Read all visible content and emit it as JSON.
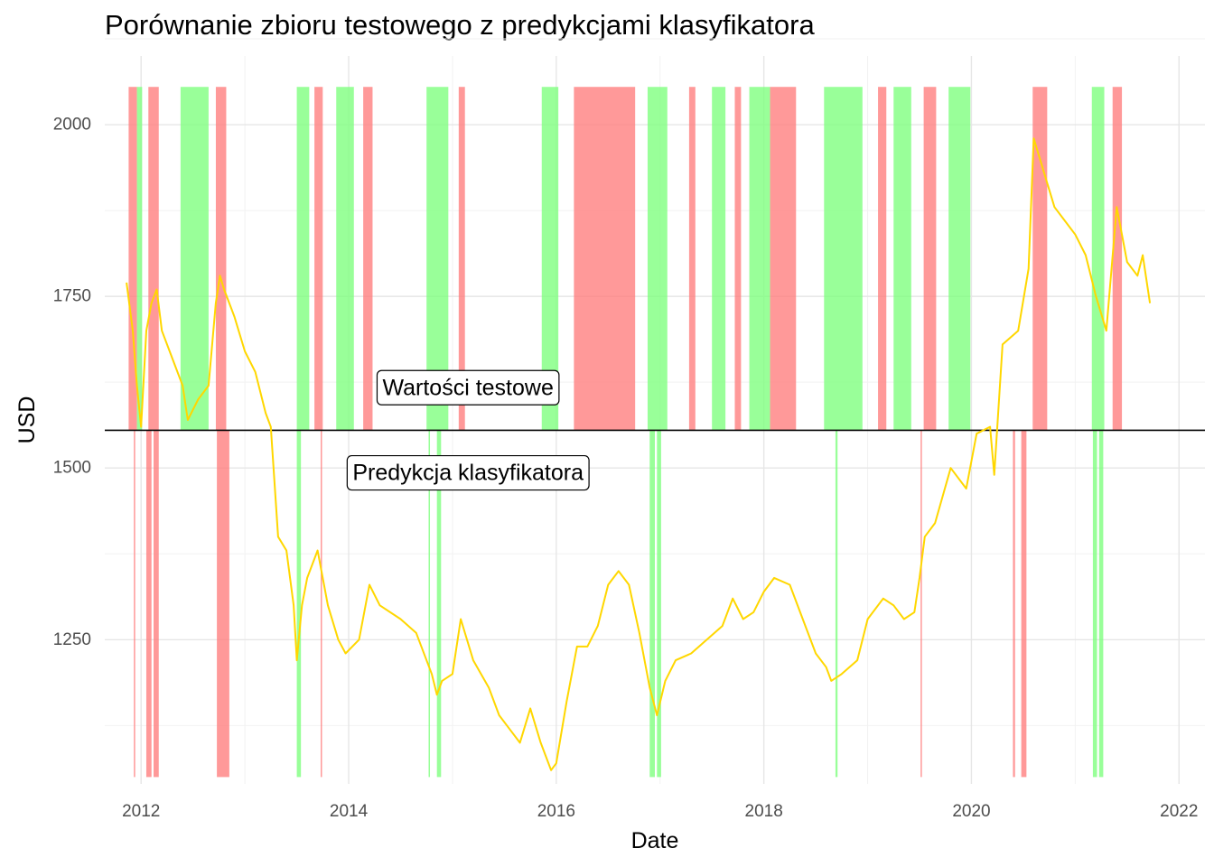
{
  "chart_data": {
    "type": "line",
    "title": "Porównanie zbioru testowego z predykcjami klasyfikatora",
    "xlabel": "Date",
    "ylabel": "USD",
    "xlim": [
      2011.65,
      2022.25
    ],
    "ylim": [
      1040,
      2100
    ],
    "x_ticks": [
      2012,
      2014,
      2016,
      2018,
      2020,
      2022
    ],
    "y_ticks": [
      1250,
      1500,
      1750,
      2000
    ],
    "grid": true,
    "reference_line": 1555,
    "band_top": 2055,
    "band_bottom": 1050,
    "colors": {
      "line": "#ffd700",
      "up": "#80ff80",
      "down": "#ff7f7f",
      "ref_line": "#000000"
    },
    "annotations": [
      {
        "text": "Wartości testowe",
        "x": 2015.15,
        "y": 1617
      },
      {
        "text": "Predykcja klasyfikatora",
        "x": 2015.15,
        "y": 1493
      }
    ],
    "test_regions": [
      {
        "start": 2011.88,
        "end": 2011.96,
        "class": "down"
      },
      {
        "start": 2011.96,
        "end": 2012.01,
        "class": "up"
      },
      {
        "start": 2012.07,
        "end": 2012.17,
        "class": "down"
      },
      {
        "start": 2012.38,
        "end": 2012.65,
        "class": "up"
      },
      {
        "start": 2012.72,
        "end": 2012.82,
        "class": "down"
      },
      {
        "start": 2013.5,
        "end": 2013.62,
        "class": "up"
      },
      {
        "start": 2013.67,
        "end": 2013.75,
        "class": "down"
      },
      {
        "start": 2013.88,
        "end": 2014.05,
        "class": "up"
      },
      {
        "start": 2014.14,
        "end": 2014.23,
        "class": "down"
      },
      {
        "start": 2014.75,
        "end": 2014.96,
        "class": "up"
      },
      {
        "start": 2015.06,
        "end": 2015.12,
        "class": "down"
      },
      {
        "start": 2015.86,
        "end": 2016.02,
        "class": "up"
      },
      {
        "start": 2016.17,
        "end": 2016.76,
        "class": "down"
      },
      {
        "start": 2016.88,
        "end": 2017.07,
        "class": "up"
      },
      {
        "start": 2017.28,
        "end": 2017.34,
        "class": "down"
      },
      {
        "start": 2017.5,
        "end": 2017.63,
        "class": "up"
      },
      {
        "start": 2017.72,
        "end": 2017.78,
        "class": "down"
      },
      {
        "start": 2017.86,
        "end": 2018.06,
        "class": "up"
      },
      {
        "start": 2018.06,
        "end": 2018.31,
        "class": "down"
      },
      {
        "start": 2018.58,
        "end": 2018.95,
        "class": "up"
      },
      {
        "start": 2019.1,
        "end": 2019.18,
        "class": "down"
      },
      {
        "start": 2019.25,
        "end": 2019.42,
        "class": "up"
      },
      {
        "start": 2019.54,
        "end": 2019.66,
        "class": "down"
      },
      {
        "start": 2019.78,
        "end": 2019.99,
        "class": "up"
      },
      {
        "start": 2020.59,
        "end": 2020.73,
        "class": "down"
      },
      {
        "start": 2021.16,
        "end": 2021.28,
        "class": "up"
      },
      {
        "start": 2021.36,
        "end": 2021.45,
        "class": "down"
      }
    ],
    "prediction_regions": [
      {
        "start": 2011.93,
        "end": 2011.94,
        "class": "down"
      },
      {
        "start": 2012.05,
        "end": 2012.1,
        "class": "down"
      },
      {
        "start": 2012.12,
        "end": 2012.17,
        "class": "down"
      },
      {
        "start": 2012.73,
        "end": 2012.85,
        "class": "down"
      },
      {
        "start": 2013.5,
        "end": 2013.54,
        "class": "up"
      },
      {
        "start": 2013.73,
        "end": 2013.74,
        "class": "down"
      },
      {
        "start": 2014.77,
        "end": 2014.78,
        "class": "up"
      },
      {
        "start": 2014.85,
        "end": 2014.89,
        "class": "up"
      },
      {
        "start": 2016.9,
        "end": 2016.95,
        "class": "up"
      },
      {
        "start": 2016.97,
        "end": 2017.01,
        "class": "up"
      },
      {
        "start": 2018.69,
        "end": 2018.71,
        "class": "up"
      },
      {
        "start": 2019.51,
        "end": 2019.52,
        "class": "down"
      },
      {
        "start": 2020.4,
        "end": 2020.42,
        "class": "down"
      },
      {
        "start": 2020.48,
        "end": 2020.53,
        "class": "down"
      },
      {
        "start": 2021.17,
        "end": 2021.21,
        "class": "up"
      },
      {
        "start": 2021.23,
        "end": 2021.27,
        "class": "up"
      }
    ],
    "series": [
      {
        "x": [
          2011.86,
          2011.92,
          2011.96,
          2012.0,
          2012.05,
          2012.1,
          2012.15,
          2012.2,
          2012.3,
          2012.4,
          2012.45,
          2012.55,
          2012.65,
          2012.72,
          2012.76,
          2012.8,
          2012.9,
          2013.0,
          2013.1,
          2013.2,
          2013.25,
          2013.32,
          2013.4,
          2013.47,
          2013.5,
          2013.55,
          2013.6,
          2013.7,
          2013.8,
          2013.9,
          2013.97,
          2014.1,
          2014.2,
          2014.3,
          2014.5,
          2014.65,
          2014.8,
          2014.85,
          2014.9,
          2015.0,
          2015.08,
          2015.2,
          2015.35,
          2015.45,
          2015.55,
          2015.65,
          2015.75,
          2015.85,
          2015.95,
          2016.0,
          2016.1,
          2016.2,
          2016.3,
          2016.4,
          2016.5,
          2016.6,
          2016.7,
          2016.8,
          2016.9,
          2016.97,
          2017.05,
          2017.15,
          2017.3,
          2017.45,
          2017.6,
          2017.7,
          2017.8,
          2017.9,
          2018.0,
          2018.1,
          2018.25,
          2018.4,
          2018.5,
          2018.6,
          2018.65,
          2018.75,
          2018.9,
          2019.0,
          2019.15,
          2019.25,
          2019.35,
          2019.45,
          2019.5,
          2019.55,
          2019.65,
          2019.8,
          2019.95,
          2020.05,
          2020.18,
          2020.22,
          2020.3,
          2020.45,
          2020.55,
          2020.6,
          2020.7,
          2020.8,
          2020.9,
          2021.0,
          2021.1,
          2021.2,
          2021.3,
          2021.4,
          2021.5,
          2021.6,
          2021.65,
          2021.72
        ],
        "values": [
          1770,
          1700,
          1620,
          1560,
          1700,
          1740,
          1760,
          1700,
          1660,
          1620,
          1570,
          1600,
          1620,
          1740,
          1780,
          1760,
          1720,
          1670,
          1640,
          1580,
          1560,
          1400,
          1380,
          1300,
          1220,
          1300,
          1340,
          1380,
          1300,
          1250,
          1230,
          1250,
          1330,
          1300,
          1280,
          1260,
          1200,
          1170,
          1190,
          1200,
          1280,
          1220,
          1180,
          1140,
          1120,
          1100,
          1150,
          1100,
          1060,
          1070,
          1160,
          1240,
          1240,
          1270,
          1330,
          1350,
          1330,
          1260,
          1180,
          1140,
          1190,
          1220,
          1230,
          1250,
          1270,
          1310,
          1280,
          1290,
          1320,
          1340,
          1330,
          1270,
          1230,
          1210,
          1190,
          1200,
          1220,
          1280,
          1310,
          1300,
          1280,
          1290,
          1340,
          1400,
          1420,
          1500,
          1470,
          1550,
          1560,
          1490,
          1680,
          1700,
          1790,
          1980,
          1930,
          1880,
          1860,
          1840,
          1810,
          1750,
          1700,
          1880,
          1800,
          1780,
          1810,
          1740
        ]
      }
    ]
  }
}
